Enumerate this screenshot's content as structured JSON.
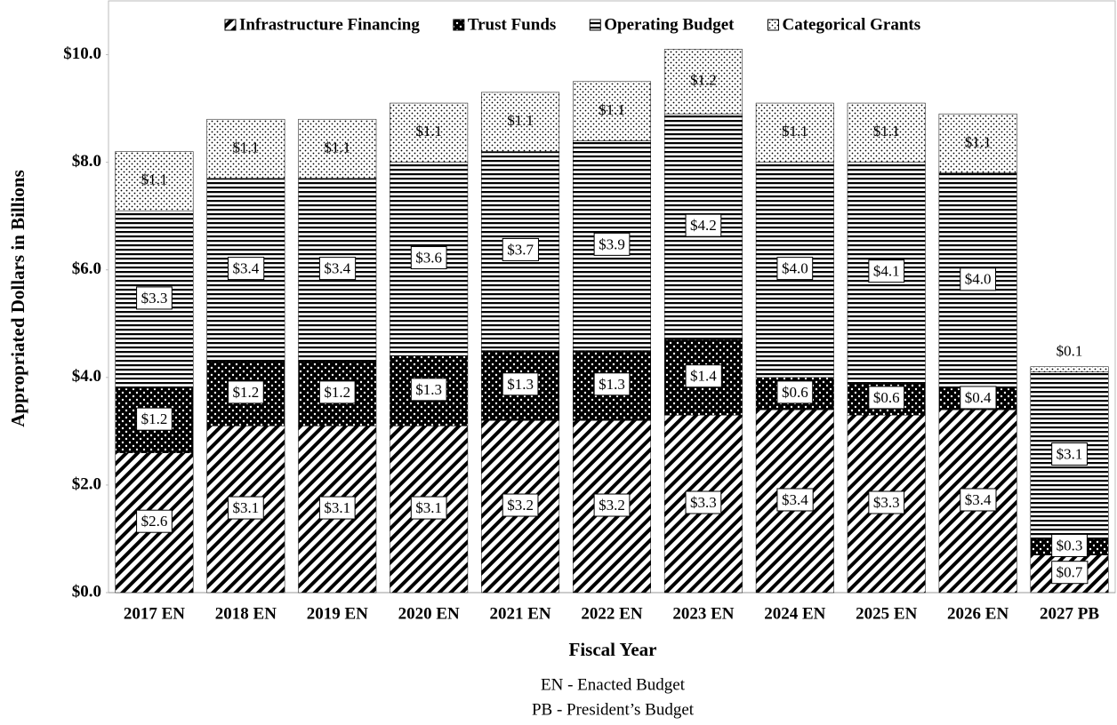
{
  "chart_data": {
    "type": "stacked_bar",
    "x_label": "Fiscal Year",
    "y_label": "Appropriated Dollars in Billions",
    "notes": [
      "EN - Enacted Budget",
      "PB - President’s Budget"
    ],
    "categories": [
      "2017 EN",
      "2018 EN",
      "2019 EN",
      "2020 EN",
      "2021 EN",
      "2022 EN",
      "2023 EN",
      "2024 EN",
      "2025 EN",
      "2026 EN",
      "2027 PB"
    ],
    "ylim": [
      0,
      11
    ],
    "yticks": [
      {
        "value": 0,
        "label": "$0.0"
      },
      {
        "value": 2,
        "label": "$2.0"
      },
      {
        "value": 4,
        "label": "$4.0"
      },
      {
        "value": 6,
        "label": "$6.0"
      },
      {
        "value": 8,
        "label": "$8.0"
      },
      {
        "value": 10,
        "label": "$10.0"
      }
    ],
    "legend": "top",
    "series": [
      {
        "name": "Infrastructure Financing",
        "color": "#000000",
        "pattern": "diagonal",
        "values": [
          2.6,
          3.1,
          3.1,
          3.1,
          3.2,
          3.2,
          3.3,
          3.4,
          3.3,
          3.4,
          0.7
        ],
        "value_labels": [
          "$2.6",
          "$3.1",
          "$3.1",
          "$3.1",
          "$3.2",
          "$3.2",
          "$3.3",
          "$3.4",
          "$3.3",
          "$3.4",
          "$0.7"
        ]
      },
      {
        "name": "Trust Funds",
        "color": "#000000",
        "pattern": "dots-on-black",
        "values": [
          1.2,
          1.2,
          1.2,
          1.3,
          1.3,
          1.3,
          1.4,
          0.6,
          0.6,
          0.4,
          0.3
        ],
        "value_labels": [
          "$1.2",
          "$1.2",
          "$1.2",
          "$1.3",
          "$1.3",
          "$1.3",
          "$1.4",
          "$0.6",
          "$0.6",
          "$0.4",
          "$0.3"
        ]
      },
      {
        "name": "Operating Budget",
        "color": "#000000",
        "pattern": "horizontal",
        "values": [
          3.3,
          3.4,
          3.4,
          3.6,
          3.7,
          3.9,
          4.2,
          4.0,
          4.1,
          4.0,
          3.1
        ],
        "value_labels": [
          "$3.3",
          "$3.4",
          "$3.4",
          "$3.6",
          "$3.7",
          "$3.9",
          "$4.2",
          "$4.0",
          "$4.1",
          "$4.0",
          "$3.1"
        ]
      },
      {
        "name": "Categorical Grants",
        "color": "#000000",
        "pattern": "dots",
        "values": [
          1.1,
          1.1,
          1.1,
          1.1,
          1.1,
          1.1,
          1.2,
          1.1,
          1.1,
          1.1,
          0.1
        ],
        "value_labels": [
          "$1.1",
          "$1.1",
          "$1.1",
          "$1.1",
          "$1.1",
          "$1.1",
          "$1.2",
          "$1.1",
          "$1.1",
          "$1.1",
          "$0.1"
        ]
      }
    ]
  }
}
